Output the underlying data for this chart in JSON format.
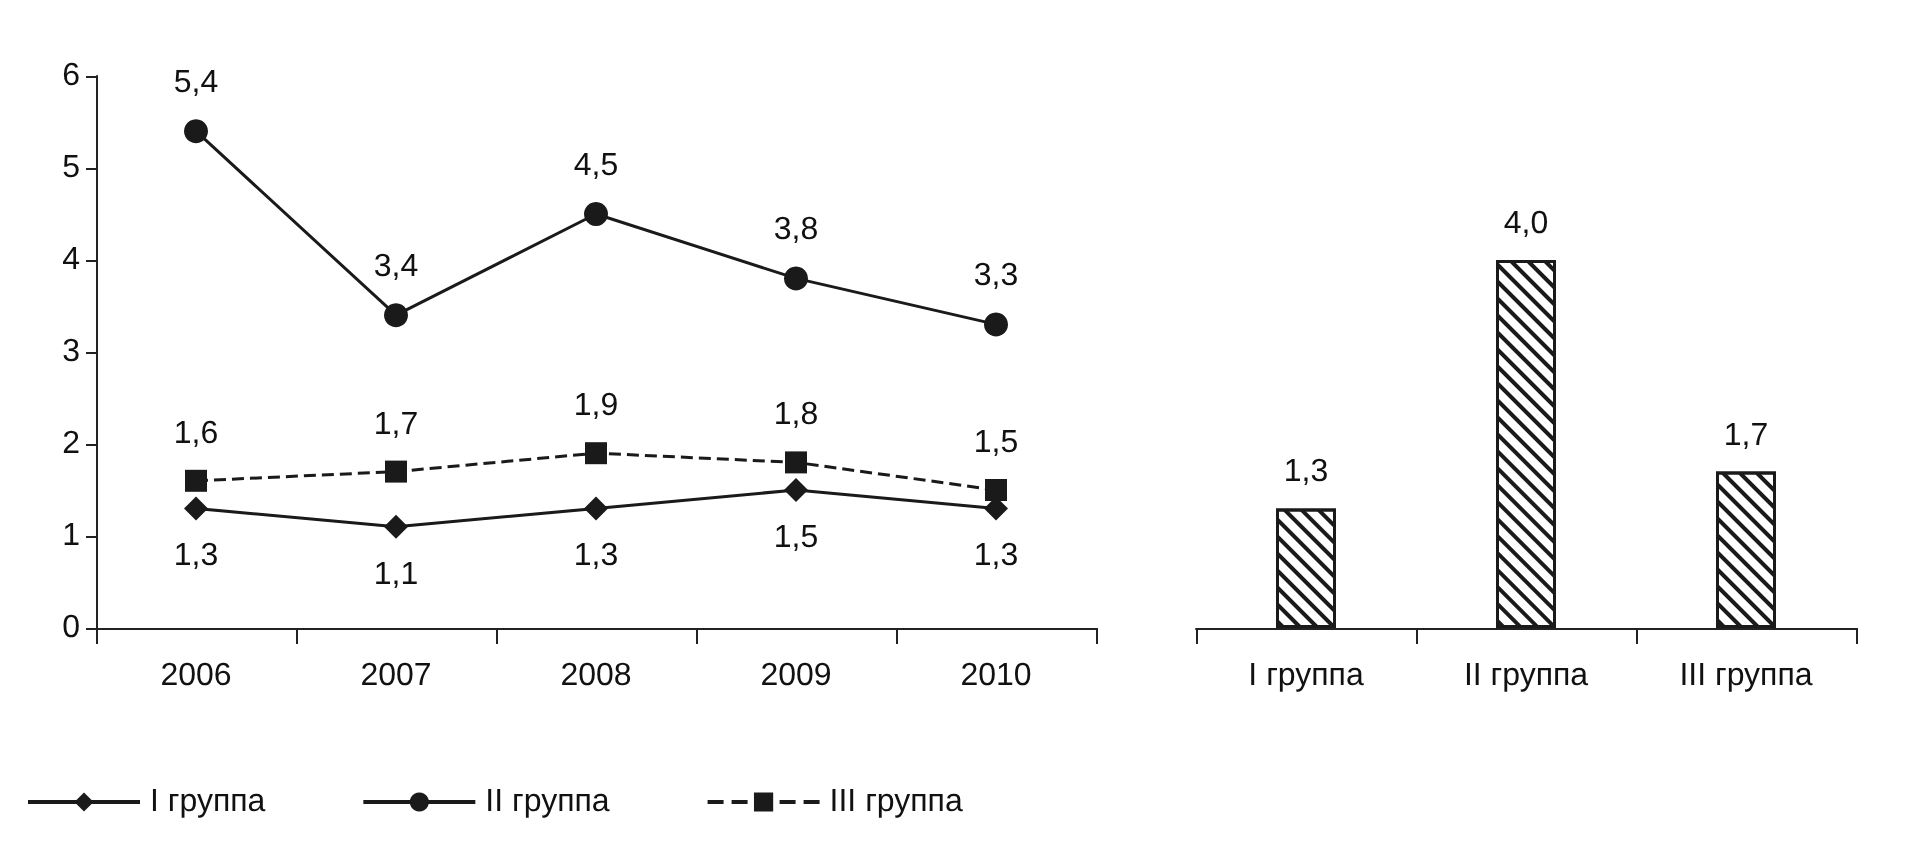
{
  "chart_data": [
    {
      "type": "line",
      "categories": [
        "2006",
        "2007",
        "2008",
        "2009",
        "2010"
      ],
      "ylim": [
        0,
        6
      ],
      "yticks": [
        0,
        1,
        2,
        3,
        4,
        5,
        6
      ],
      "grid": false,
      "legend": "bottom left",
      "series": [
        {
          "name": "I группа",
          "color": "#1a1a1a",
          "marker": "diamond",
          "line_style": "solid",
          "values": [
            1.3,
            1.1,
            1.3,
            1.5,
            1.3
          ],
          "value_labels": [
            "1,3",
            "1,1",
            "1,3",
            "1,5",
            "1,3"
          ]
        },
        {
          "name": "II группа",
          "color": "#1a1a1a",
          "marker": "circle",
          "line_style": "solid",
          "values": [
            5.4,
            3.4,
            4.5,
            3.8,
            3.3
          ],
          "value_labels": [
            "5,4",
            "3,4",
            "4,5",
            "3,8",
            "3,3"
          ]
        },
        {
          "name": "III группа",
          "color": "#1a1a1a",
          "marker": "square",
          "line_style": "dashed",
          "values": [
            1.6,
            1.7,
            1.9,
            1.8,
            1.5
          ],
          "value_labels": [
            "1,6",
            "1,7",
            "1,9",
            "1,8",
            "1,5"
          ]
        }
      ]
    },
    {
      "type": "bar",
      "categories": [
        "I группа",
        "II группа",
        "III группа"
      ],
      "values": [
        1.3,
        4.0,
        1.7
      ],
      "value_labels": [
        "1,3",
        "4,0",
        "1,7"
      ],
      "color": "#1a1a1a",
      "ylim": [
        0,
        6
      ],
      "tick_labels": "x",
      "grid": false
    }
  ]
}
